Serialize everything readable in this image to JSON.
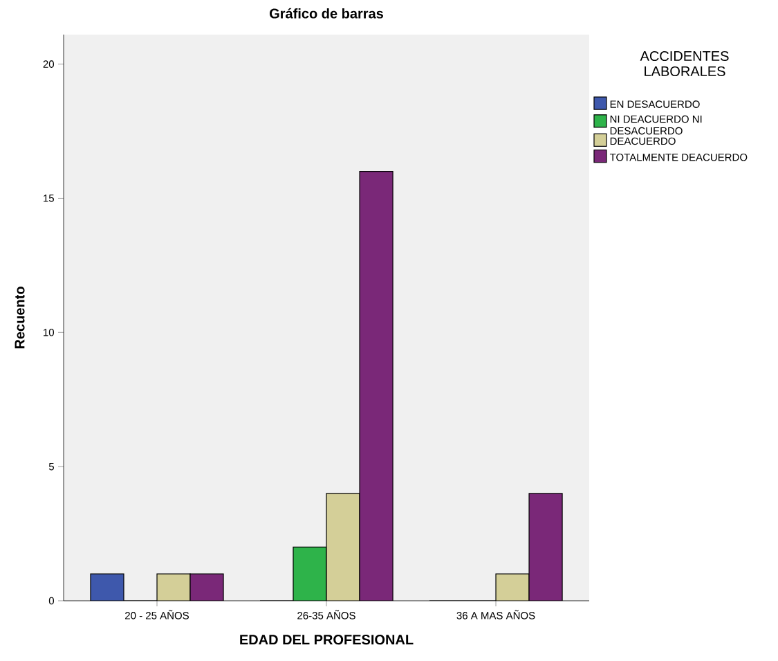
{
  "chart_data": {
    "type": "bar",
    "title": "Gráfico de barras",
    "xlabel": "EDAD DEL PROFESIONAL",
    "ylabel": "Recuento",
    "categories": [
      "20 - 25 AÑOS",
      "26-35 AÑOS",
      "36 A MAS AÑOS"
    ],
    "legend_title": "ACCIDENTES LABORALES",
    "legend": "top right",
    "series": [
      {
        "name": "EN DESACUERDO",
        "color": "#3e58ac",
        "values": [
          1,
          0,
          0
        ]
      },
      {
        "name": "NI DEACUERDO NI DESACUERDO",
        "color": "#2eb34a",
        "values": [
          0,
          2,
          0
        ]
      },
      {
        "name": "DEACUERDO",
        "color": "#d4cf98",
        "values": [
          1,
          4,
          1
        ]
      },
      {
        "name": "TOTALMENTE DEACUERDO",
        "color": "#7a2878",
        "values": [
          1,
          16,
          4
        ]
      }
    ],
    "ylim": [
      0,
      21.1
    ],
    "yticks": [
      0,
      5,
      10,
      15,
      20
    ]
  }
}
